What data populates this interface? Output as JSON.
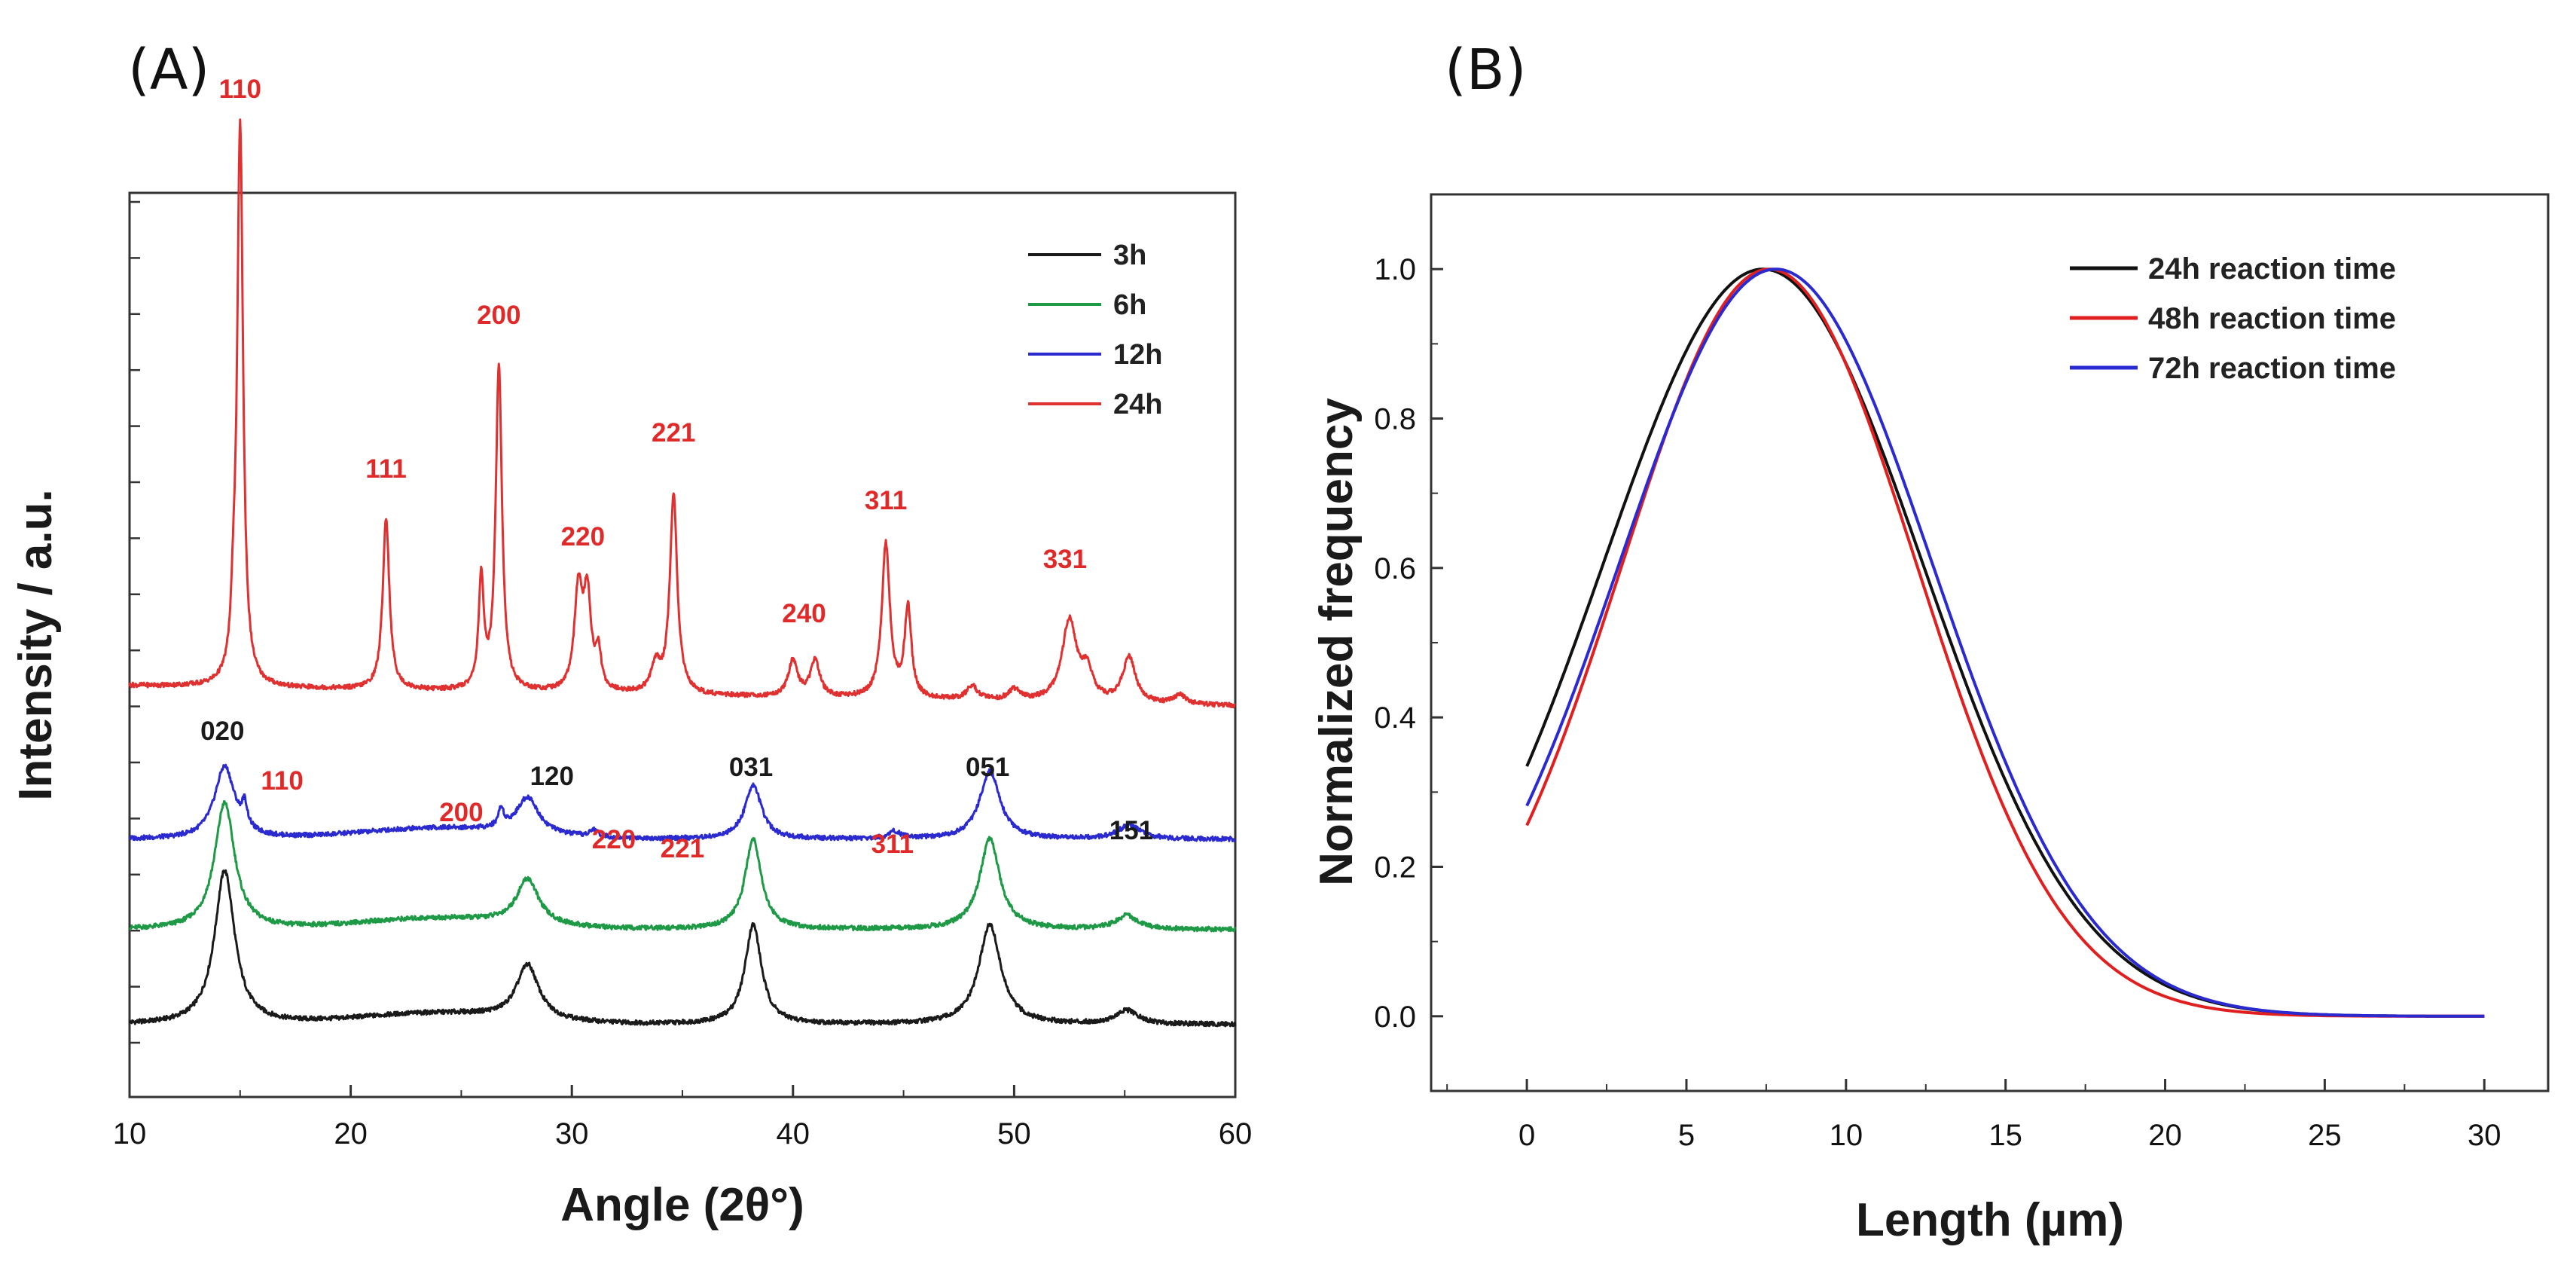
{
  "chart_data": [
    {
      "type": "line",
      "panel_label": "(A)",
      "xlabel": "Angle (2θ°)",
      "ylabel": "Intensity / a.u.",
      "xlim": [
        10,
        60
      ],
      "ylim": [
        0,
        100
      ],
      "xticks": [
        10,
        20,
        30,
        40,
        50,
        60
      ],
      "colors": {
        "3h": "#1a1a1a",
        "6h": "#1e9a46",
        "12h": "#2a2ad0",
        "24h": "#e03030"
      },
      "legend_position": "top-right",
      "legend": [
        "3h",
        "6h",
        "12h",
        "24h"
      ],
      "series": [
        {
          "name": "3h",
          "color": "#1a1a1a",
          "baseline": 8,
          "offset": 0,
          "peaks": [
            [
              14.3,
              17,
              0.55
            ],
            [
              28.0,
              6,
              0.6
            ],
            [
              38.2,
              11,
              0.45
            ],
            [
              48.9,
              11,
              0.6
            ],
            [
              55.1,
              1.5,
              0.6
            ]
          ]
        },
        {
          "name": "6h",
          "color": "#1e9a46",
          "baseline": 18.5,
          "offset": 0,
          "peaks": [
            [
              14.3,
              14,
              0.55
            ],
            [
              28.0,
              5,
              0.6
            ],
            [
              38.2,
              10,
              0.45
            ],
            [
              48.9,
              10,
              0.55
            ],
            [
              55.1,
              1.5,
              0.6
            ]
          ]
        },
        {
          "name": "12h",
          "color": "#2a2ad0",
          "baseline": 28.5,
          "offset": 0,
          "peaks": [
            [
              14.3,
              8,
              0.55
            ],
            [
              15.2,
              2.5,
              0.15
            ],
            [
              26.8,
              2,
              0.15
            ],
            [
              28.0,
              4,
              0.6
            ],
            [
              31.0,
              0.8,
              0.2
            ],
            [
              38.2,
              6,
              0.45
            ],
            [
              44.6,
              0.8,
              0.3
            ],
            [
              48.9,
              7.5,
              0.55
            ],
            [
              55.2,
              1.5,
              0.6
            ]
          ]
        },
        {
          "name": "24h",
          "color": "#e03030",
          "baseline": 45.5,
          "offset": 0,
          "peaks": [
            [
              14.7,
              5,
              0.12
            ],
            [
              15.0,
              62,
              0.16
            ],
            [
              21.6,
              19,
              0.18
            ],
            [
              25.9,
              12,
              0.14
            ],
            [
              26.7,
              36,
              0.17
            ],
            [
              30.3,
              11,
              0.22
            ],
            [
              30.7,
              10,
              0.2
            ],
            [
              31.2,
              4,
              0.15
            ],
            [
              33.8,
              3,
              0.25
            ],
            [
              34.6,
              22,
              0.2
            ],
            [
              40.0,
              4,
              0.25
            ],
            [
              41.0,
              4,
              0.25
            ],
            [
              44.2,
              17,
              0.22
            ],
            [
              45.2,
              10,
              0.18
            ],
            [
              48.1,
              1.5,
              0.3
            ],
            [
              50.0,
              1.2,
              0.3
            ],
            [
              52.5,
              9,
              0.4
            ],
            [
              53.3,
              3,
              0.3
            ],
            [
              55.2,
              5,
              0.35
            ],
            [
              57.5,
              1,
              0.3
            ]
          ]
        }
      ],
      "annotations": [
        {
          "text": "110",
          "x": 15.0,
          "y": 110.5,
          "color": "red"
        },
        {
          "text": "111",
          "x": 21.6,
          "y": 68.5,
          "color": "red"
        },
        {
          "text": "200",
          "x": 26.7,
          "y": 85.5,
          "color": "red"
        },
        {
          "text": "220",
          "x": 30.5,
          "y": 61,
          "color": "red"
        },
        {
          "text": "221",
          "x": 34.6,
          "y": 72.5,
          "color": "red"
        },
        {
          "text": "240",
          "x": 40.5,
          "y": 52.5,
          "color": "red"
        },
        {
          "text": "311",
          "x": 44.2,
          "y": 65,
          "color": "red"
        },
        {
          "text": "331",
          "x": 52.3,
          "y": 58.5,
          "color": "red"
        },
        {
          "text": "020",
          "x": 14.2,
          "y": 39.5,
          "color": "black"
        },
        {
          "text": "110",
          "x": 16.9,
          "y": 34,
          "color": "red"
        },
        {
          "text": "200",
          "x": 25.0,
          "y": 30.5,
          "color": "red"
        },
        {
          "text": "120",
          "x": 29.1,
          "y": 34.5,
          "color": "black"
        },
        {
          "text": "220",
          "x": 31.9,
          "y": 27.5,
          "color": "red"
        },
        {
          "text": "221",
          "x": 35.0,
          "y": 26.5,
          "color": "red"
        },
        {
          "text": "031",
          "x": 38.1,
          "y": 35.5,
          "color": "black"
        },
        {
          "text": "311",
          "x": 44.5,
          "y": 27,
          "color": "red"
        },
        {
          "text": "051",
          "x": 48.8,
          "y": 35.5,
          "color": "black"
        },
        {
          "text": "151",
          "x": 55.3,
          "y": 28.5,
          "color": "black"
        }
      ]
    },
    {
      "type": "line",
      "panel_label": "(B)",
      "xlabel": "Length (µm)",
      "ylabel": "Normalized frequency",
      "xlim": [
        -3,
        32
      ],
      "ylim": [
        -0.1,
        1.1
      ],
      "xticks": [
        0,
        5,
        10,
        15,
        20,
        25,
        30
      ],
      "yticks": [
        "0.0",
        "0.2",
        "0.4",
        "0.6",
        "0.8",
        "1.0"
      ],
      "legend_position": "top-right",
      "legend": [
        "24h reaction time",
        "48h reaction time",
        "72h reaction time"
      ],
      "series": [
        {
          "name": "24h reaction time",
          "color": "#111111",
          "peak_x": 7.4,
          "sigma": 5.0,
          "x_range": [
            0,
            30
          ]
        },
        {
          "name": "48h reaction time",
          "color": "#e02020",
          "peak_x": 7.6,
          "sigma": 4.6,
          "x_range": [
            0,
            30
          ]
        },
        {
          "name": "72h reaction time",
          "color": "#2a2ad0",
          "peak_x": 7.8,
          "sigma": 4.9,
          "x_range": [
            0,
            30
          ]
        }
      ]
    }
  ]
}
